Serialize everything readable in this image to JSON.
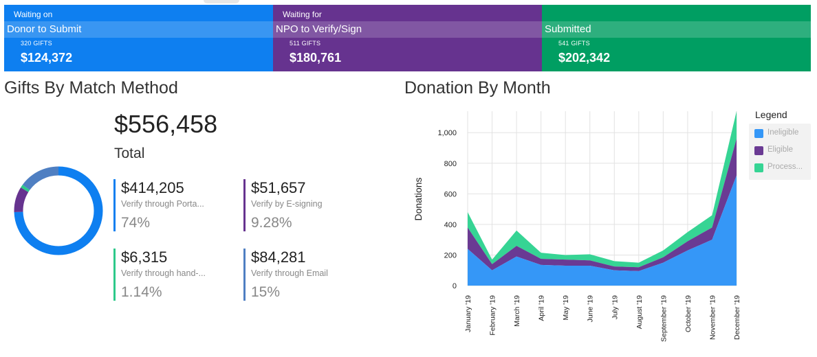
{
  "status_cards": [
    {
      "top": "Waiting on",
      "middle": "Donor to Submit",
      "gifts": "320 GIFTS",
      "amount": "$124,372",
      "color": "#0e7ff0"
    },
    {
      "top": "Waiting for",
      "middle": "NPO to Verify/Sign",
      "gifts": "511 GIFTS",
      "amount": "$180,761",
      "color": "#66338f"
    },
    {
      "top": "",
      "middle": "Submitted",
      "gifts": "541 GIFTS",
      "amount": "$202,342",
      "color": "#009e62"
    }
  ],
  "gifts_section": {
    "title": "Gifts By Match Method",
    "total_amount": "$556,458",
    "total_label": "Total",
    "methods": [
      {
        "amount": "$414,205",
        "label": "Verify through Porta...",
        "pct": "74%",
        "color": "#0e7ff0",
        "fraction": 0.74
      },
      {
        "amount": "$51,657",
        "label": "Verify by E-signing",
        "pct": "9.28%",
        "color": "#66338f",
        "fraction": 0.0928
      },
      {
        "amount": "$6,315",
        "label": "Verify through hand-...",
        "pct": "1.14%",
        "color": "#2dc98a",
        "fraction": 0.0114
      },
      {
        "amount": "$84,281",
        "label": "Verify through Email",
        "pct": "15%",
        "color": "#4f7fc2",
        "fraction": 0.15
      }
    ]
  },
  "chart_data": {
    "type": "area",
    "title": "Donation By Month",
    "xlabel": "",
    "ylabel": "Donations",
    "ylim": [
      0,
      1140
    ],
    "yticks": [
      0,
      200,
      400,
      600,
      800,
      1000
    ],
    "ytick_labels": [
      "0",
      "200",
      "400",
      "600",
      "800",
      "1,000"
    ],
    "grid": true,
    "stacked": true,
    "categories": [
      "January '19",
      "February '19",
      "March '19",
      "April '19",
      "May '19",
      "June '19",
      "July '19",
      "August '19",
      "September '19",
      "October '19",
      "November '19",
      "December '19"
    ],
    "series": [
      {
        "name": "Ineligible",
        "color": "#3597f7",
        "values": [
          240,
          100,
          190,
          135,
          130,
          130,
          100,
          95,
          150,
          230,
          300,
          720
        ]
      },
      {
        "name": "Eligible",
        "color": "#6a3a93",
        "values": [
          140,
          40,
          70,
          40,
          40,
          35,
          25,
          25,
          35,
          60,
          80,
          240
        ]
      },
      {
        "name": "Process...",
        "color": "#36d494",
        "values": [
          100,
          30,
          100,
          40,
          30,
          40,
          35,
          30,
          45,
          60,
          80,
          180
        ]
      }
    ],
    "legend": {
      "title": "Legend",
      "position": "right"
    }
  }
}
